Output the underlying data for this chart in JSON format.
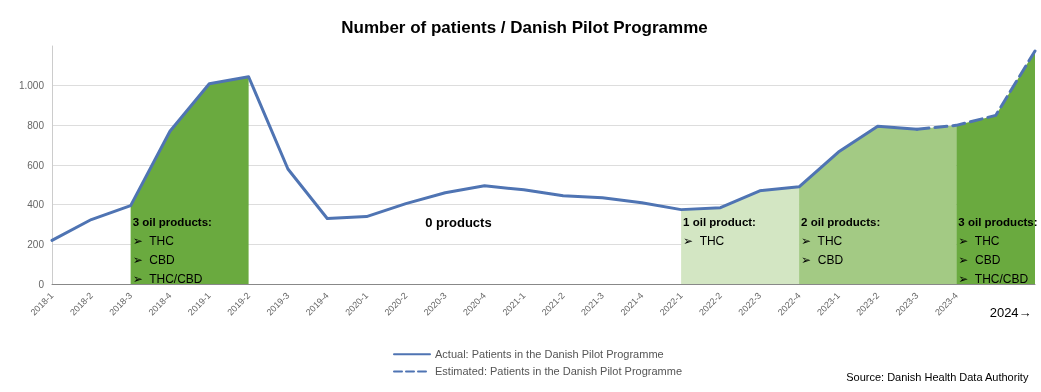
{
  "chart_data": {
    "type": "line",
    "title": "Number of patients / Danish Pilot Programme",
    "categories": [
      "2018-1",
      "2018-2",
      "2018-3",
      "2018-4",
      "2019-1",
      "2019-2",
      "2019-3",
      "2019-4",
      "2020-1",
      "2020-2",
      "2020-3",
      "2020-4",
      "2021-1",
      "2021-2",
      "2021-3",
      "2021-4",
      "2022-1",
      "2022-2",
      "2022-3",
      "2022-4",
      "2023-1",
      "2023-2",
      "2023-3",
      "2023-4",
      null,
      null
    ],
    "series": [
      {
        "type": "area",
        "color": "#6aaa3f",
        "values": [
          null,
          null,
          395,
          770,
          1010,
          1045,
          null,
          null,
          null,
          null,
          null,
          null,
          null,
          null,
          null,
          null,
          null,
          null,
          null,
          null,
          null,
          null,
          null,
          null,
          null,
          null
        ]
      },
      {
        "type": "area",
        "color": "#d3e6c3",
        "values": [
          null,
          null,
          null,
          null,
          null,
          null,
          null,
          null,
          null,
          null,
          null,
          null,
          null,
          null,
          null,
          null,
          375,
          385,
          470,
          490,
          null,
          null,
          null,
          null,
          null,
          null
        ]
      },
      {
        "type": "area",
        "color": "#a3ca84",
        "values": [
          null,
          null,
          null,
          null,
          null,
          null,
          null,
          null,
          null,
          null,
          null,
          null,
          null,
          null,
          null,
          null,
          null,
          null,
          null,
          490,
          665,
          795,
          780,
          800,
          null,
          null
        ]
      },
      {
        "type": "area",
        "color": "#6aaa3f",
        "values": [
          null,
          null,
          null,
          null,
          null,
          null,
          null,
          null,
          null,
          null,
          null,
          null,
          null,
          null,
          null,
          null,
          null,
          null,
          null,
          null,
          null,
          null,
          null,
          800,
          850,
          1175
        ]
      },
      {
        "name": "Actual: Patients in the Danish Pilot Programme",
        "color": "#4f74b3",
        "line_style": "solid",
        "values": [
          220,
          325,
          395,
          770,
          1010,
          1045,
          580,
          330,
          340,
          405,
          460,
          495,
          475,
          445,
          435,
          410,
          375,
          385,
          470,
          490,
          665,
          795,
          780,
          null,
          null,
          null
        ]
      },
      {
        "name": "Estimated: Patients in the Danish Pilot Programme",
        "color": "#4f74b3",
        "line_style": "dashed",
        "values": [
          null,
          null,
          null,
          null,
          null,
          null,
          null,
          null,
          null,
          null,
          null,
          null,
          null,
          null,
          null,
          null,
          null,
          null,
          null,
          null,
          null,
          null,
          780,
          800,
          850,
          1175
        ]
      }
    ],
    "ylim": [
      0,
      1200
    ],
    "yticks": [
      0,
      200,
      400,
      600,
      800,
      {
        "value": 1000,
        "label": "1.000"
      }
    ],
    "grid": "y",
    "legend": "bottom",
    "marker": "none",
    "annotations": [
      {
        "text": "3 oil products:\n➢  THC\n➢  CBD\n➢  THC/CBD",
        "x": "2018-3",
        "y": 360
      },
      "0 products",
      {
        "text": "1 oil product:\n➢  THC",
        "x": "2022-1",
        "y": 360
      },
      {
        "text": "2 oil products:\n➢  THC\n➢  CBD",
        "x": "2022-4",
        "y": 360
      },
      {
        "text": "3 oil products:\n➢  THC\n➢  CBD\n➢  THC/CBD",
        "x": "2023-4",
        "y": 360
      },
      "2024→",
      "Source: Danish Health Data Authority"
    ]
  }
}
